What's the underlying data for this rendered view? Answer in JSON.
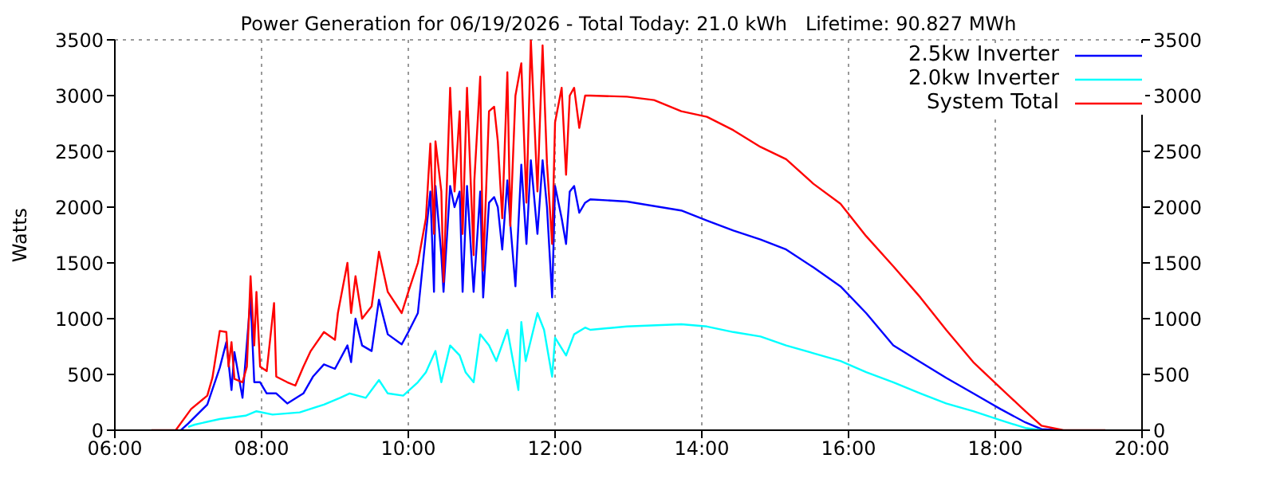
{
  "chart_data": {
    "type": "line",
    "title": "Power Generation for 06/19/2026 - Total Today: 21.0 kWh   Lifetime: 90.827 MWh",
    "ylabel": "Watts",
    "xlim": [
      6,
      20
    ],
    "xticks": [
      {
        "value": 6,
        "label": "06:00"
      },
      {
        "value": 8,
        "label": "08:00"
      },
      {
        "value": 10,
        "label": "10:00"
      },
      {
        "value": 12,
        "label": "12:00"
      },
      {
        "value": 14,
        "label": "14:00"
      },
      {
        "value": 16,
        "label": "16:00"
      },
      {
        "value": 18,
        "label": "18:00"
      },
      {
        "value": 20,
        "label": "20:00"
      }
    ],
    "ylim": [
      0,
      3500
    ],
    "yticks": [
      0,
      500,
      1000,
      1500,
      2000,
      2500,
      3000,
      3500
    ],
    "y2lim": [
      0,
      3500
    ],
    "y2ticks": [
      0,
      500,
      1000,
      1500,
      2000,
      2500,
      3000,
      3500
    ],
    "grid": true,
    "legend": "top right",
    "marker": "none",
    "line_style": "solid",
    "series": [
      {
        "name": "2.5kw Inverter",
        "color": "#0000ff",
        "x": [
          6.9,
          7.0,
          7.26,
          7.43,
          7.52,
          7.59,
          7.63,
          7.74,
          7.85,
          7.9,
          7.98,
          8.07,
          8.2,
          8.35,
          8.57,
          8.7,
          8.85,
          9.0,
          9.17,
          9.22,
          9.28,
          9.37,
          9.5,
          9.6,
          9.72,
          9.91,
          10.0,
          10.13,
          10.24,
          10.3,
          10.35,
          10.37,
          10.45,
          10.48,
          10.57,
          10.63,
          10.7,
          10.74,
          10.8,
          10.89,
          10.98,
          11.02,
          11.1,
          11.17,
          11.22,
          11.28,
          11.35,
          11.39,
          11.46,
          11.54,
          11.61,
          11.67,
          11.76,
          11.83,
          11.89,
          11.96,
          12.0,
          12.09,
          12.15,
          12.2,
          12.26,
          12.33,
          12.41,
          12.48,
          12.98,
          13.72,
          14.07,
          14.43,
          14.8,
          15.15,
          15.52,
          15.89,
          16.24,
          16.61,
          16.98,
          17.33,
          17.7,
          18.07,
          18.41,
          18.63,
          18.9
        ],
        "values": [
          0,
          60,
          230,
          560,
          790,
          360,
          700,
          290,
          1190,
          430,
          430,
          330,
          330,
          240,
          330,
          480,
          590,
          550,
          760,
          610,
          1000,
          760,
          710,
          1170,
          860,
          770,
          880,
          1050,
          1760,
          2140,
          1240,
          2190,
          1570,
          1240,
          2190,
          2000,
          2140,
          1240,
          2190,
          1240,
          2140,
          1190,
          2040,
          2090,
          2000,
          1620,
          2240,
          1850,
          1290,
          2380,
          1670,
          2420,
          1760,
          2420,
          2000,
          1190,
          2190,
          1900,
          1670,
          2140,
          2190,
          1950,
          2040,
          2070,
          2050,
          1970,
          1880,
          1790,
          1710,
          1620,
          1460,
          1290,
          1050,
          760,
          610,
          470,
          330,
          190,
          70,
          10,
          0
        ]
      },
      {
        "name": "2.0kw Inverter",
        "color": "#00ffff",
        "x": [
          7.0,
          7.09,
          7.43,
          7.78,
          7.93,
          8.15,
          8.52,
          8.85,
          9.07,
          9.2,
          9.42,
          9.6,
          9.72,
          9.93,
          10.13,
          10.24,
          10.37,
          10.45,
          10.57,
          10.7,
          10.78,
          10.89,
          10.98,
          11.1,
          11.2,
          11.35,
          11.5,
          11.54,
          11.6,
          11.76,
          11.85,
          11.96,
          12.0,
          12.15,
          12.26,
          12.41,
          12.48,
          12.98,
          13.72,
          14.07,
          14.43,
          14.8,
          15.15,
          15.52,
          15.89,
          16.24,
          16.61,
          16.98,
          17.33,
          17.7,
          18.07,
          18.41,
          18.63
        ],
        "values": [
          30,
          50,
          100,
          130,
          170,
          140,
          160,
          230,
          290,
          330,
          290,
          450,
          330,
          310,
          430,
          520,
          710,
          430,
          760,
          670,
          520,
          430,
          860,
          760,
          620,
          900,
          360,
          970,
          620,
          1050,
          900,
          480,
          830,
          670,
          860,
          920,
          900,
          930,
          950,
          930,
          880,
          840,
          760,
          690,
          620,
          520,
          430,
          330,
          240,
          170,
          90,
          20,
          0
        ]
      },
      {
        "name": "System Total",
        "color": "#ff0000",
        "x": [
          6.5,
          6.83,
          7.04,
          7.26,
          7.33,
          7.43,
          7.52,
          7.55,
          7.59,
          7.63,
          7.74,
          7.8,
          7.85,
          7.9,
          7.93,
          7.98,
          8.07,
          8.17,
          8.2,
          8.35,
          8.46,
          8.57,
          8.67,
          8.85,
          9.0,
          9.04,
          9.17,
          9.22,
          9.28,
          9.37,
          9.5,
          9.6,
          9.72,
          9.91,
          10.0,
          10.13,
          10.24,
          10.3,
          10.35,
          10.37,
          10.45,
          10.48,
          10.57,
          10.63,
          10.7,
          10.74,
          10.8,
          10.89,
          10.9,
          10.98,
          11.02,
          11.1,
          11.17,
          11.22,
          11.28,
          11.35,
          11.39,
          11.46,
          11.54,
          11.61,
          11.67,
          11.76,
          11.83,
          11.89,
          11.96,
          12.0,
          12.09,
          12.15,
          12.2,
          12.26,
          12.33,
          12.41,
          12.48,
          12.98,
          13.35,
          13.72,
          14.07,
          14.43,
          14.8,
          15.15,
          15.52,
          15.89,
          16.24,
          16.61,
          16.98,
          17.33,
          17.7,
          18.07,
          18.41,
          18.63,
          18.93,
          19.5
        ],
        "values": [
          0,
          0,
          190,
          310,
          470,
          890,
          880,
          570,
          790,
          460,
          430,
          570,
          1380,
          760,
          1240,
          570,
          530,
          1140,
          480,
          430,
          400,
          570,
          710,
          880,
          810,
          1050,
          1500,
          1050,
          1380,
          1000,
          1110,
          1600,
          1240,
          1050,
          1240,
          1500,
          1900,
          2570,
          1760,
          2590,
          2140,
          1330,
          3070,
          2140,
          2860,
          1760,
          3070,
          1570,
          2240,
          3170,
          1430,
          2860,
          2900,
          2590,
          1900,
          3210,
          1830,
          3000,
          3290,
          2040,
          3500,
          2140,
          3450,
          2390,
          1670,
          2760,
          3070,
          2290,
          3000,
          3070,
          2710,
          3000,
          3000,
          2990,
          2960,
          2860,
          2810,
          2690,
          2540,
          2430,
          2210,
          2030,
          1740,
          1470,
          1190,
          900,
          610,
          380,
          170,
          40,
          0,
          0
        ]
      }
    ]
  }
}
